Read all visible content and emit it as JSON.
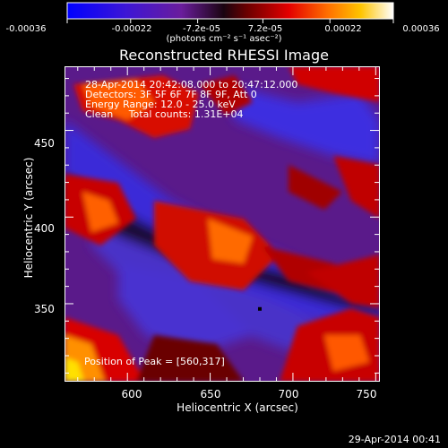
{
  "chart_data": {
    "type": "heatmap",
    "title": "Reconstructed RHESSI Image",
    "colorbar": {
      "tick_labels": [
        "-0.00036",
        "-0.00022",
        "-7.2e-05",
        "7.2e-05",
        "0.00022",
        "0.00036"
      ],
      "range": [
        -0.00036,
        0.00036
      ],
      "units": "(photons cm⁻² s⁻¹ asec⁻²)",
      "colormap": "blue-purple-black-red-orange-yellow-white"
    },
    "info_lines": [
      "28-Apr-2014 20:42:08.000 to 20:47:12.000",
      "Detectors: 3F 5F 6F 7F 8F 9F, Att 0",
      "Energy Range: 12.0 - 25.0 keV",
      "Clean     Total counts: 1.31E+04"
    ],
    "xlabel": "Heliocentric X (arcsec)",
    "ylabel": "Heliocentric Y (arcsec)",
    "x_ticks": [
      "600",
      "650",
      "700",
      "750"
    ],
    "y_ticks": [
      "350",
      "400",
      "450"
    ],
    "xlim": [
      562,
      752
    ],
    "ylim": [
      305,
      487
    ],
    "peak_label": "Position of Peak = [560,317]",
    "marker": {
      "x": 680,
      "y": 347
    },
    "grid": false
  },
  "footer": "29-Apr-2014 00:41"
}
